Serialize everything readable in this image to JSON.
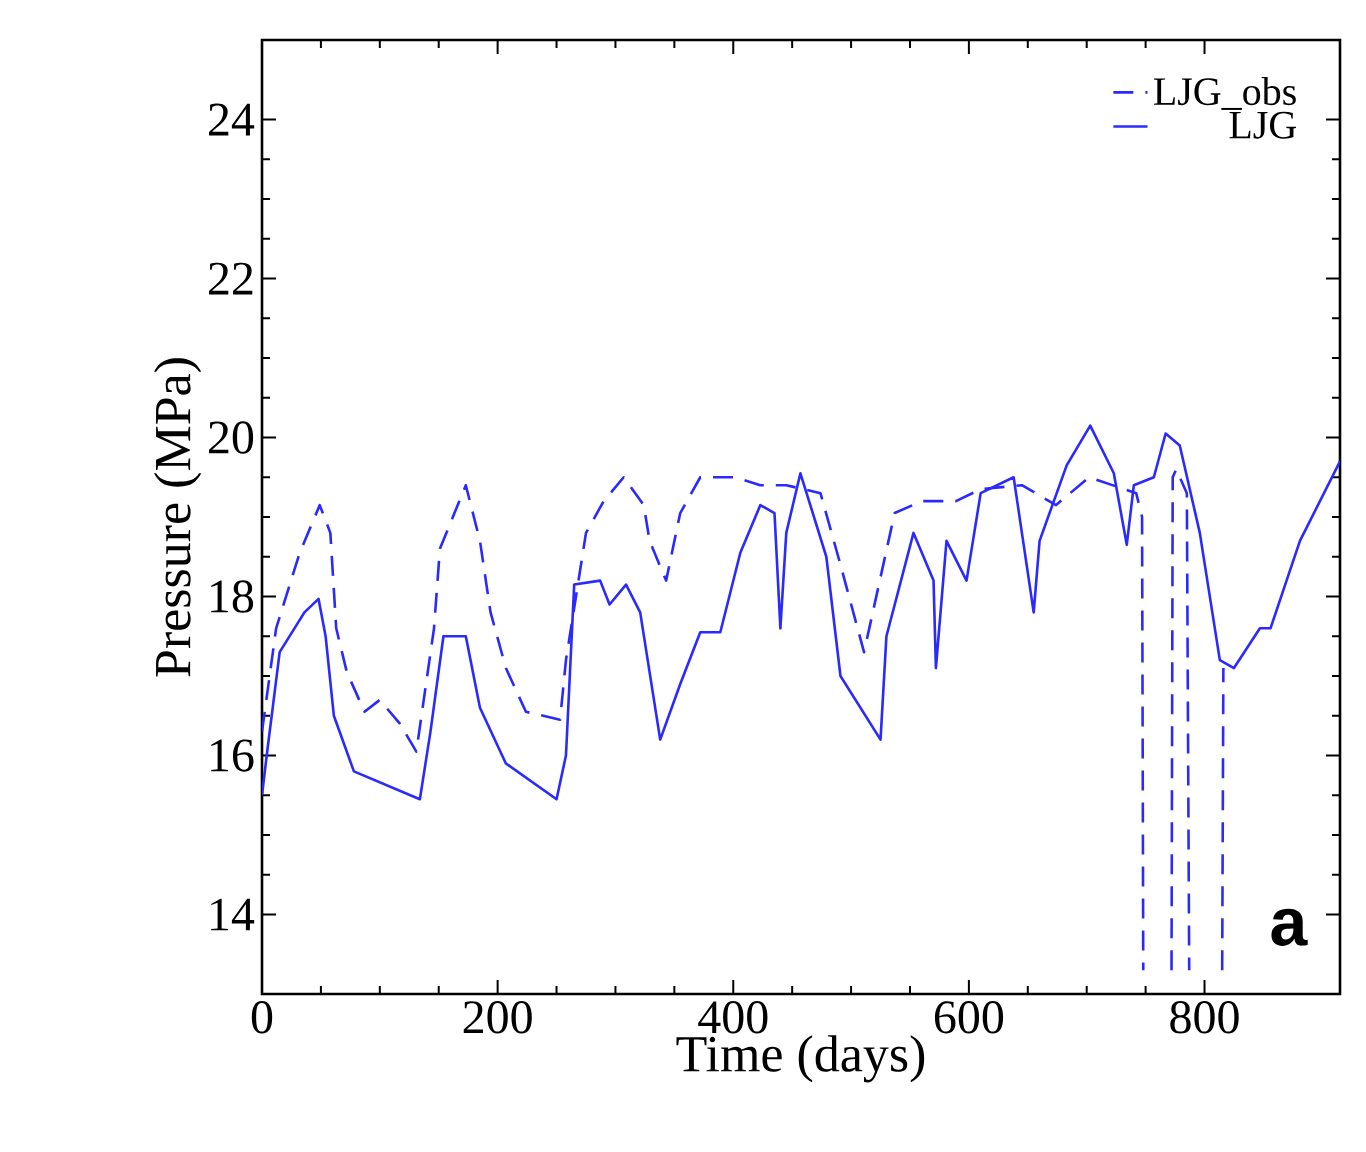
{
  "chart_data": {
    "type": "line",
    "xlabel": "Time (days)",
    "ylabel": "Pressure (MPa)",
    "annotations": [
      "a"
    ],
    "xlim": [
      0,
      915
    ],
    "ylim": [
      13,
      25
    ],
    "xticks": [
      0,
      200,
      400,
      600,
      800
    ],
    "yticks": [
      14,
      16,
      18,
      20,
      22,
      24
    ],
    "legend": "top right",
    "grid": false,
    "series": [
      {
        "name": "LJG_obs",
        "color": "#2a2aff",
        "line_style": "dashed",
        "x": [
          0,
          12,
          32,
          49,
          58,
          63,
          72,
          87,
          100,
          117,
          131,
          146,
          151,
          173,
          185,
          194,
          207,
          224,
          253,
          258,
          275,
          290,
          307,
          324,
          329,
          343,
          355,
          372,
          401,
          423,
          445,
          474,
          491,
          511,
          537,
          560,
          589,
          610,
          645,
          674,
          702,
          742,
          747,
          748,
          760,
          772,
          773,
          776,
          785,
          787,
          800,
          815,
          816
        ],
        "values": [
          16.3,
          17.6,
          18.55,
          19.15,
          18.8,
          17.6,
          17.05,
          16.55,
          16.7,
          16.4,
          16.05,
          17.6,
          18.6,
          19.4,
          18.7,
          17.8,
          17.1,
          16.55,
          16.45,
          17.2,
          18.8,
          19.2,
          19.5,
          19.15,
          18.7,
          18.2,
          19.05,
          19.5,
          19.5,
          19.4,
          19.4,
          19.3,
          18.4,
          17.3,
          19.05,
          19.2,
          19.2,
          19.35,
          19.4,
          19.15,
          19.5,
          19.3,
          19.0,
          13.3,
          null,
          13.3,
          19.5,
          19.6,
          19.3,
          13.3,
          null,
          13.3,
          17.1
        ]
      },
      {
        "name": "LJG",
        "color": "#2a2aff",
        "line_style": "solid",
        "x": [
          0,
          4,
          15,
          36,
          48,
          54,
          61,
          78,
          134,
          143,
          154,
          173,
          185,
          207,
          250,
          258,
          265,
          287,
          295,
          309,
          321,
          338,
          355,
          372,
          389,
          406,
          423,
          435,
          440,
          445,
          457,
          479,
          491,
          525,
          530,
          553,
          570,
          572,
          581,
          598,
          610,
          638,
          655,
          660,
          683,
          703,
          723,
          734,
          740,
          757,
          767,
          779,
          796,
          813,
          825,
          847,
          856,
          881,
          915
        ],
        "values": [
          15.5,
          16.0,
          17.3,
          17.8,
          17.97,
          17.5,
          16.5,
          15.8,
          15.45,
          16.3,
          17.5,
          17.5,
          16.6,
          15.9,
          15.45,
          16.0,
          18.15,
          18.2,
          17.9,
          18.15,
          17.8,
          16.2,
          16.9,
          17.55,
          17.55,
          18.55,
          19.15,
          19.05,
          17.6,
          18.8,
          19.55,
          18.5,
          17.0,
          16.2,
          17.5,
          18.8,
          18.2,
          17.1,
          18.7,
          18.2,
          19.3,
          19.5,
          17.8,
          18.7,
          19.65,
          20.15,
          19.55,
          18.65,
          19.4,
          19.5,
          20.05,
          19.9,
          18.8,
          17.2,
          17.1,
          17.6,
          17.6,
          18.7,
          19.7
        ]
      }
    ]
  }
}
